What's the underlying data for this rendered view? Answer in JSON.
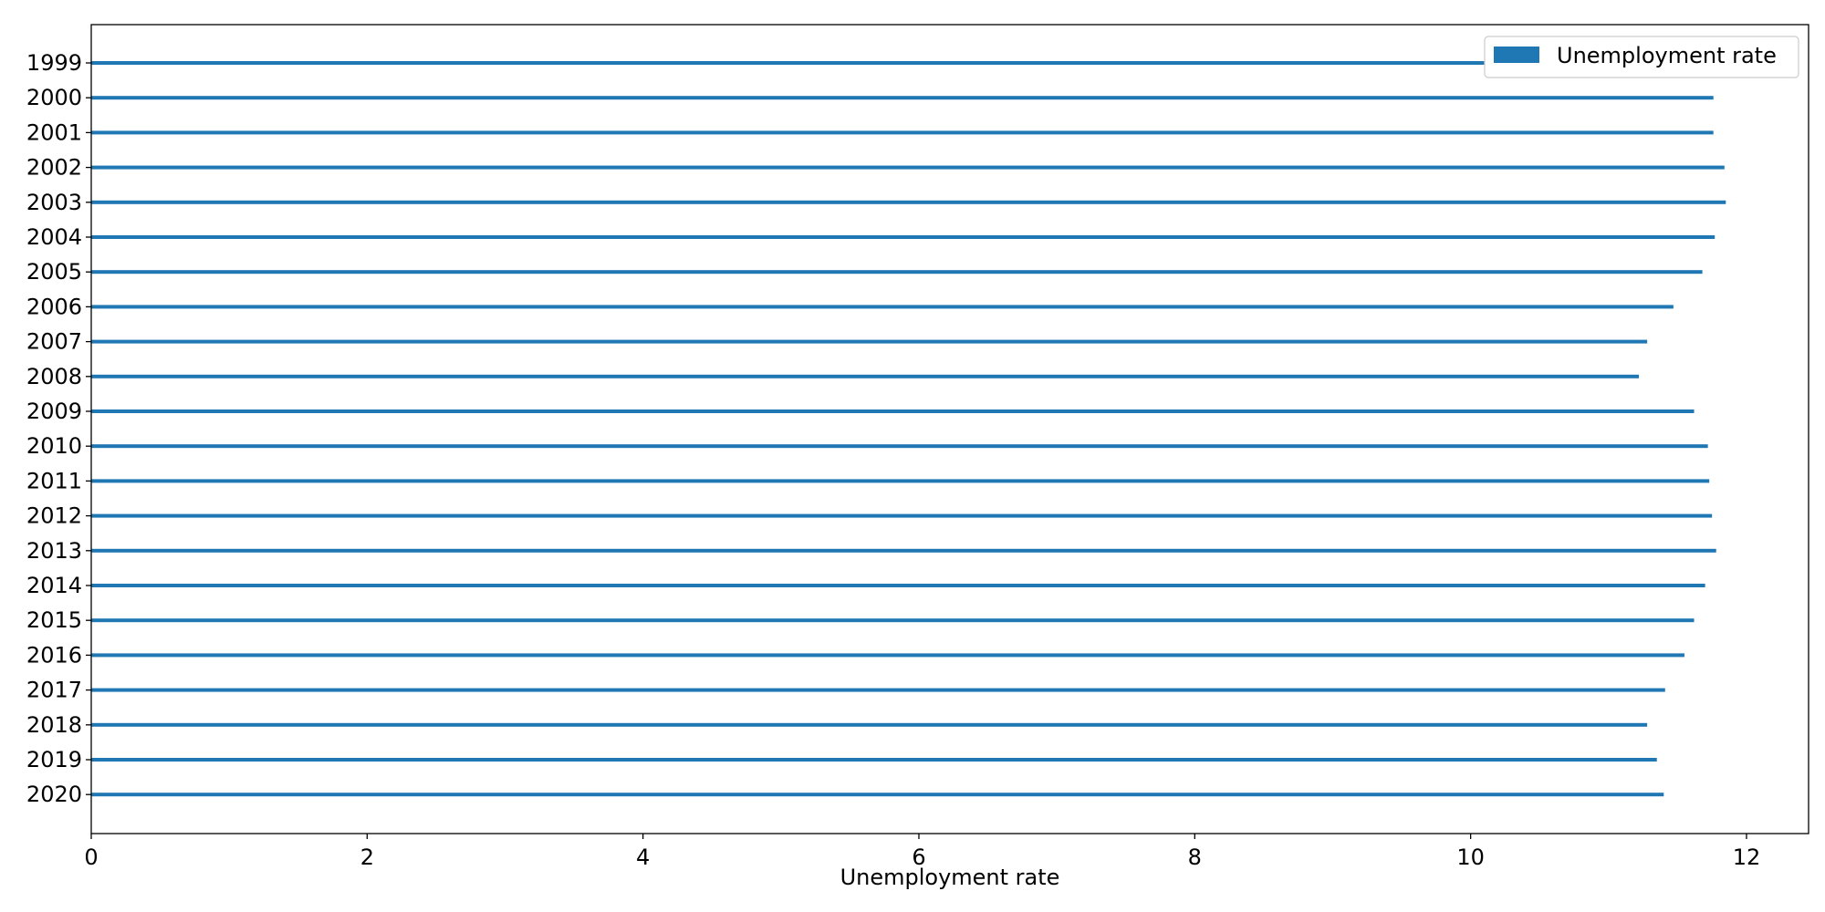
{
  "colors": {
    "bar": "#1f77b4",
    "axis": "#000000",
    "background": "#ffffff"
  },
  "chart_data": {
    "type": "bar",
    "orientation": "horizontal",
    "categories": [
      "1999",
      "2000",
      "2001",
      "2002",
      "2003",
      "2004",
      "2005",
      "2006",
      "2007",
      "2008",
      "2009",
      "2010",
      "2011",
      "2012",
      "2013",
      "2014",
      "2015",
      "2016",
      "2017",
      "2018",
      "2019",
      "2020"
    ],
    "series": [
      {
        "name": "Unemployment rate",
        "values": [
          11.85,
          11.76,
          11.76,
          11.84,
          11.85,
          11.77,
          11.68,
          11.47,
          11.28,
          11.22,
          11.62,
          11.72,
          11.73,
          11.75,
          11.78,
          11.7,
          11.62,
          11.55,
          11.41,
          11.28,
          11.35,
          11.4
        ]
      }
    ],
    "xlabel": "Unemployment rate",
    "ylabel": "",
    "title": "",
    "xlim": [
      0,
      12.45
    ],
    "xticks": [
      "0",
      "2",
      "4",
      "6",
      "8",
      "10",
      "12"
    ],
    "grid": false,
    "legend": "top-right"
  }
}
